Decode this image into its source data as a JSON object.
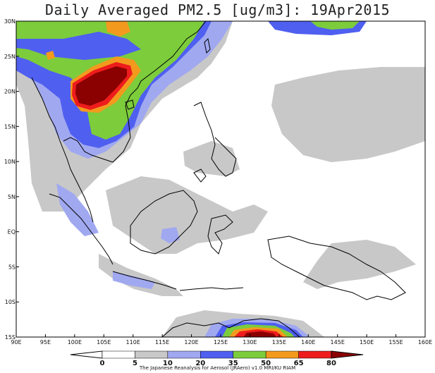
{
  "title": "Daily Averaged PM2.5 [ug/m3]: 19Apr2015",
  "footer": "The Japanese Reanalysis for Aerosol (JRAero) v1.0 MRI/KU RIAM",
  "lon_labels": [
    "90E",
    "95E",
    "100E",
    "105E",
    "110E",
    "115E",
    "120E",
    "125E",
    "130E",
    "135E",
    "140E",
    "145E",
    "150E",
    "155E",
    "160E"
  ],
  "lat_labels": [
    "30N",
    "25N",
    "20N",
    "15N",
    "10N",
    "5N",
    "EQ",
    "5S",
    "10S",
    "15S"
  ],
  "colorbar": {
    "levels": [
      "0",
      "5",
      "10",
      "20",
      "35",
      "50",
      "65",
      "80"
    ],
    "colors": [
      "#ffffff",
      "#ffffff",
      "#c8c8c8",
      "#a0a8f0",
      "#4f5ff0",
      "#7ccc3c",
      "#f39a1e",
      "#ee1c1c",
      "#8b0000"
    ]
  }
}
